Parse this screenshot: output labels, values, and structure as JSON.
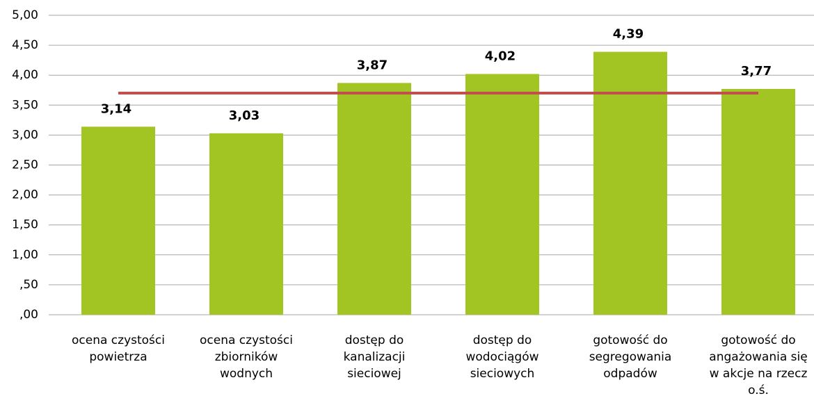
{
  "chart_data": {
    "type": "bar",
    "categories": [
      "ocena czystości\npowietrza",
      "ocena czystości\nzbiorników\nwodnych",
      "dostęp do\nkanalizacji\nsieciowej",
      "dostęp do\nwodociągów\nsieciowych",
      "gotowość do\nsegregowania\nodpadów",
      "gotowość do\nangażowania się\nw akcje na rzecz\no.ś."
    ],
    "values": [
      3.14,
      3.03,
      3.87,
      4.02,
      4.39,
      3.77
    ],
    "value_labels": [
      "3,14",
      "3,03",
      "3,87",
      "4,02",
      "4,39",
      "3,77"
    ],
    "color": "#a3c523",
    "line": {
      "color": "#c0504d",
      "values": [
        3.7,
        3.7,
        3.7,
        3.7,
        3.7,
        3.7
      ]
    },
    "ylim": [
      0,
      5
    ],
    "yticks": [
      {
        "value": 0,
        "label": ",00"
      },
      {
        "value": 0.5,
        "label": ",50"
      },
      {
        "value": 1,
        "label": "1,00"
      },
      {
        "value": 1.5,
        "label": "1,50"
      },
      {
        "value": 2,
        "label": "2,00"
      },
      {
        "value": 2.5,
        "label": "2,50"
      },
      {
        "value": 3,
        "label": "3,00"
      },
      {
        "value": 3.5,
        "label": "3,50"
      },
      {
        "value": 4,
        "label": "4,00"
      },
      {
        "value": 4.5,
        "label": "4,50"
      },
      {
        "value": 5,
        "label": "5,00"
      }
    ],
    "grid": true
  }
}
